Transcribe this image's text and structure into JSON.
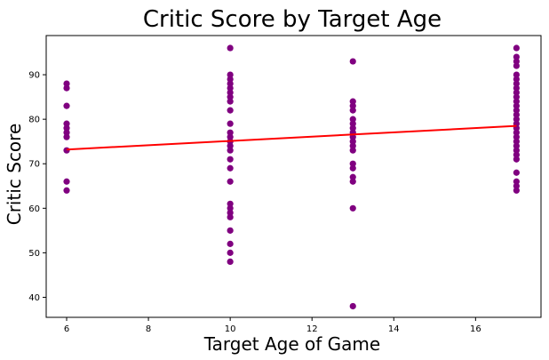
{
  "chart_data": {
    "type": "scatter",
    "title": "Critic Score by Target Age",
    "xlabel": "Target Age of Game",
    "ylabel": "Critic Score",
    "xlim": [
      5.5,
      17.6
    ],
    "ylim": [
      35.5,
      98.8
    ],
    "xticks": [
      6,
      8,
      10,
      12,
      14,
      16
    ],
    "yticks": [
      40,
      50,
      60,
      70,
      80,
      90
    ],
    "grid": false,
    "point_color": "#800080",
    "line_color": "#ff0000",
    "points": [
      [
        6,
        64
      ],
      [
        6,
        66
      ],
      [
        6,
        73
      ],
      [
        6,
        76
      ],
      [
        6,
        77
      ],
      [
        6,
        78
      ],
      [
        6,
        79
      ],
      [
        6,
        83
      ],
      [
        6,
        87
      ],
      [
        6,
        88
      ],
      [
        10,
        48
      ],
      [
        10,
        50
      ],
      [
        10,
        52
      ],
      [
        10,
        55
      ],
      [
        10,
        58
      ],
      [
        10,
        59
      ],
      [
        10,
        60
      ],
      [
        10,
        61
      ],
      [
        10,
        66
      ],
      [
        10,
        69
      ],
      [
        10,
        71
      ],
      [
        10,
        73
      ],
      [
        10,
        74
      ],
      [
        10,
        75
      ],
      [
        10,
        76
      ],
      [
        10,
        77
      ],
      [
        10,
        79
      ],
      [
        10,
        82
      ],
      [
        10,
        84
      ],
      [
        10,
        85
      ],
      [
        10,
        86
      ],
      [
        10,
        87
      ],
      [
        10,
        88
      ],
      [
        10,
        89
      ],
      [
        10,
        90
      ],
      [
        10,
        96
      ],
      [
        13,
        38
      ],
      [
        13,
        60
      ],
      [
        13,
        66
      ],
      [
        13,
        67
      ],
      [
        13,
        69
      ],
      [
        13,
        70
      ],
      [
        13,
        73
      ],
      [
        13,
        74
      ],
      [
        13,
        75
      ],
      [
        13,
        76
      ],
      [
        13,
        77
      ],
      [
        13,
        78
      ],
      [
        13,
        79
      ],
      [
        13,
        80
      ],
      [
        13,
        82
      ],
      [
        13,
        83
      ],
      [
        13,
        84
      ],
      [
        13,
        93
      ],
      [
        17,
        64
      ],
      [
        17,
        65
      ],
      [
        17,
        66
      ],
      [
        17,
        68
      ],
      [
        17,
        71
      ],
      [
        17,
        72
      ],
      [
        17,
        73
      ],
      [
        17,
        74
      ],
      [
        17,
        75
      ],
      [
        17,
        76
      ],
      [
        17,
        77
      ],
      [
        17,
        78
      ],
      [
        17,
        79
      ],
      [
        17,
        80
      ],
      [
        17,
        81
      ],
      [
        17,
        82
      ],
      [
        17,
        83
      ],
      [
        17,
        84
      ],
      [
        17,
        85
      ],
      [
        17,
        86
      ],
      [
        17,
        87
      ],
      [
        17,
        88
      ],
      [
        17,
        89
      ],
      [
        17,
        90
      ],
      [
        17,
        92
      ],
      [
        17,
        93
      ],
      [
        17,
        94
      ],
      [
        17,
        96
      ]
    ],
    "trendline": {
      "x": [
        6,
        17
      ],
      "y": [
        73.2,
        78.5
      ]
    }
  }
}
